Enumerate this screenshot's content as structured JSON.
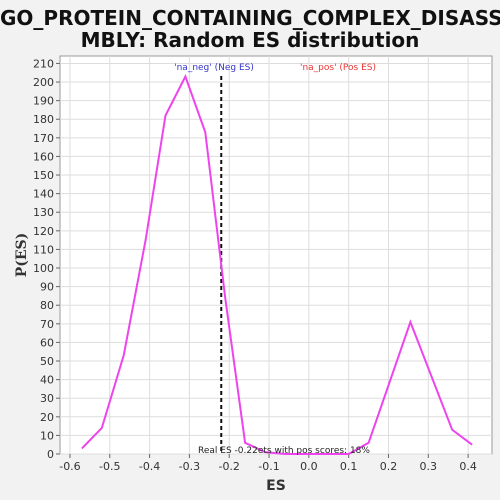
{
  "chart_data": {
    "type": "line",
    "title_line1": "GO_PROTEIN_CONTAINING_COMPLEX_DISASSE",
    "title_line2": "MBLY: Random ES distribution",
    "xlabel": "ES",
    "ylabel": "P(ES)",
    "xlim": [
      -0.625,
      0.46
    ],
    "ylim": [
      0,
      214
    ],
    "x_ticks": [
      -0.6,
      -0.5,
      -0.4,
      -0.3,
      -0.2,
      -0.1,
      0.0,
      0.1,
      0.2,
      0.3,
      0.4
    ],
    "x_tick_labels": [
      "-0.6",
      "-0.5",
      "-0.4",
      "-0.3",
      "-0.2",
      "-0.1",
      "0.0",
      "0.1",
      "0.2",
      "0.3",
      "0.4"
    ],
    "y_ticks": [
      0,
      10,
      20,
      30,
      40,
      50,
      60,
      70,
      80,
      90,
      100,
      110,
      120,
      130,
      140,
      150,
      160,
      170,
      180,
      190,
      200,
      210
    ],
    "y_tick_labels": [
      "0",
      "10",
      "20",
      "30",
      "40",
      "50",
      "60",
      "70",
      "80",
      "90",
      "100",
      "110",
      "120",
      "130",
      "140",
      "150",
      "160",
      "170",
      "180",
      "190",
      "200",
      "210"
    ],
    "grid": true,
    "series": [
      {
        "color": "#ee44ee",
        "x": [
          -0.57,
          -0.52,
          -0.465,
          -0.41,
          -0.36,
          -0.31,
          -0.26,
          -0.21,
          -0.16,
          -0.11,
          -0.06,
          0.0,
          0.05,
          0.1,
          0.15,
          0.255,
          0.36,
          0.41
        ],
        "y": [
          3,
          14,
          53,
          115,
          182,
          203,
          173,
          84,
          6,
          1,
          0,
          0,
          0,
          0,
          6,
          71,
          13,
          5
        ]
      }
    ],
    "real_es": -0.22,
    "annotations": {
      "neg_label": "'na_neg' (Neg ES)",
      "pos_label": "'na_pos' (Pos ES)",
      "bottom_note": "Real ES -0.22ets with pos scores: 18%"
    },
    "colors": {
      "neg_label": "#3333cc",
      "pos_label": "#ee3333",
      "line": "#ee44ee",
      "grid": "#dddddd"
    }
  }
}
